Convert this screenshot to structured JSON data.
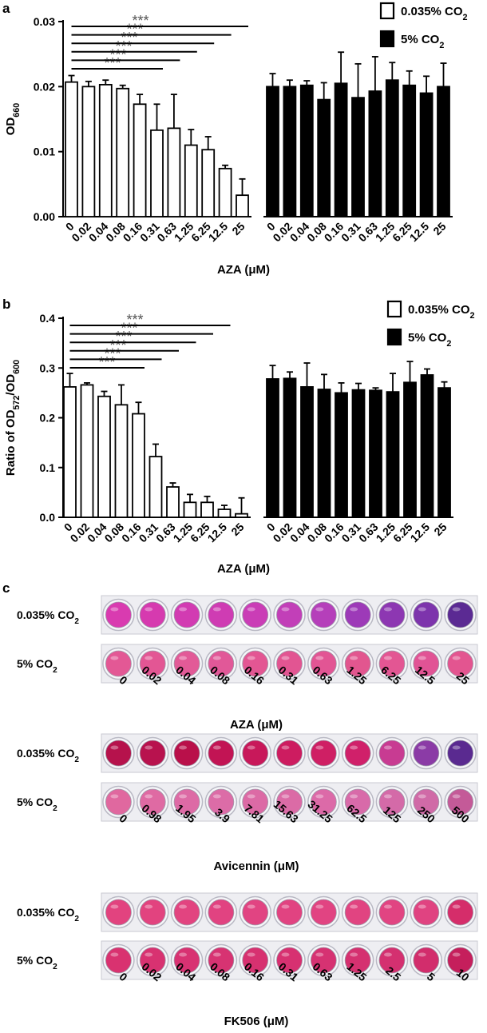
{
  "panel_a": {
    "panel_label": "a",
    "chart_data": {
      "type": "bar",
      "ylabel": "OD660",
      "ylabel_main": "OD",
      "ylabel_sub": "660",
      "xlabel": "AZA (μM)",
      "ylim": [
        0,
        0.03
      ],
      "yticks": [
        "0.00",
        "0.01",
        "0.02",
        "0.03"
      ],
      "categories": [
        "0",
        "0.02",
        "0.04",
        "0.08",
        "0.16",
        "0.31",
        "0.63",
        "1.25",
        "6.25",
        "12.5",
        "25"
      ],
      "series": [
        {
          "name": "0.035% CO2",
          "name_main": "0.035% CO",
          "name_sub": "2",
          "color": "#ffffff",
          "values": [
            0.0207,
            0.02,
            0.0203,
            0.0197,
            0.0173,
            0.0133,
            0.0136,
            0.011,
            0.0103,
            0.0074,
            0.0033
          ],
          "errors": [
            0.001,
            0.0008,
            0.0007,
            0.0005,
            0.0015,
            0.004,
            0.0052,
            0.0024,
            0.002,
            0.0005,
            0.0025
          ]
        },
        {
          "name": "5% CO2",
          "name_main": "5% CO",
          "name_sub": "2",
          "color": "#000000",
          "values": [
            0.02,
            0.02,
            0.0202,
            0.018,
            0.0205,
            0.0183,
            0.0193,
            0.021,
            0.0202,
            0.019,
            0.02
          ],
          "errors": [
            0.002,
            0.001,
            0.0007,
            0.0026,
            0.0048,
            0.0052,
            0.0053,
            0.0027,
            0.0022,
            0.0026,
            0.0036
          ]
        }
      ],
      "significance": [
        {
          "label": "***",
          "from": 0,
          "to": 5
        },
        {
          "label": "***",
          "from": 0,
          "to": 6
        },
        {
          "label": "***",
          "from": 0,
          "to": 7
        },
        {
          "label": "***",
          "from": 0,
          "to": 8
        },
        {
          "label": "***",
          "from": 0,
          "to": 9
        },
        {
          "label": "***",
          "from": 0,
          "to": 10
        }
      ]
    }
  },
  "panel_b": {
    "panel_label": "b",
    "chart_data": {
      "type": "bar",
      "ylabel": "Ratio of OD572/OD600",
      "ylabel_main": "Ratio of OD",
      "ylabel_sub1": "572",
      "ylabel_mid": "/OD",
      "ylabel_sub2": "600",
      "xlabel": "AZA (μM)",
      "ylim": [
        0,
        0.4
      ],
      "yticks": [
        "0.0",
        "0.1",
        "0.2",
        "0.3",
        "0.4"
      ],
      "categories": [
        "0",
        "0.02",
        "0.04",
        "0.08",
        "0.16",
        "0.31",
        "0.63",
        "1.25",
        "6.25",
        "12.5",
        "25"
      ],
      "series": [
        {
          "name": "0.035% CO2",
          "name_main": "0.035% CO",
          "name_sub": "2",
          "color": "#ffffff",
          "values": [
            0.262,
            0.266,
            0.243,
            0.226,
            0.208,
            0.122,
            0.061,
            0.03,
            0.03,
            0.016,
            0.007
          ],
          "errors": [
            0.027,
            0.004,
            0.01,
            0.04,
            0.023,
            0.025,
            0.008,
            0.016,
            0.012,
            0.008,
            0.032
          ]
        },
        {
          "name": "5% CO2",
          "name_main": "5% CO",
          "name_sub": "2",
          "color": "#000000",
          "values": [
            0.278,
            0.279,
            0.262,
            0.257,
            0.25,
            0.256,
            0.255,
            0.252,
            0.271,
            0.286,
            0.26
          ],
          "errors": [
            0.027,
            0.013,
            0.048,
            0.03,
            0.02,
            0.013,
            0.005,
            0.037,
            0.042,
            0.012,
            0.012
          ]
        }
      ],
      "significance": [
        {
          "label": "***",
          "from": 0,
          "to": 4
        },
        {
          "label": "***",
          "from": 0,
          "to": 5
        },
        {
          "label": "***",
          "from": 0,
          "to": 6
        },
        {
          "label": "***",
          "from": 0,
          "to": 7
        },
        {
          "label": "***",
          "from": 0,
          "to": 8
        },
        {
          "label": "***",
          "from": 0,
          "to": 9
        }
      ]
    }
  },
  "panel_c": {
    "panel_label": "c",
    "plates": [
      {
        "rows": [
          {
            "label_main": "0.035% CO",
            "label_sub": "2",
            "colors": [
              "#d93bb0",
              "#d63aaf",
              "#d23bb2",
              "#cf3cb3",
              "#ca3db6",
              "#c23fb8",
              "#b53fba",
              "#9d3ab8",
              "#8d37b2",
              "#7d34ac",
              "#5b2a93"
            ]
          },
          {
            "label_main": "5% CO",
            "label_sub": "2",
            "colors": [
              "#e35895",
              "#e35694",
              "#e25a97",
              "#e15898",
              "#e35693",
              "#e25592",
              "#e25594",
              "#e2568f",
              "#e35693",
              "#e15395",
              "#e35590"
            ]
          }
        ],
        "concentrations": [
          "0",
          "0.02",
          "0.04",
          "0.08",
          "0.16",
          "0.31",
          "0.63",
          "1.25",
          "6.25",
          "12.5",
          "25"
        ],
        "xlabel": "AZA (μM)"
      },
      {
        "rows": [
          {
            "label_main": "0.035% CO",
            "label_sub": "2",
            "colors": [
              "#b6124c",
              "#b8124e",
              "#b9104a",
              "#c21454",
              "#c8185a",
              "#cd1c60",
              "#cf1f64",
              "#d0206a",
              "#c83b92",
              "#8b3ba6",
              "#5a2a90"
            ]
          },
          {
            "label_main": "5% CO",
            "label_sub": "2",
            "colors": [
              "#e0689f",
              "#df6aa3",
              "#dd6aa5",
              "#dc6ca7",
              "#dc6aa5",
              "#db6ba6",
              "#dc6aa8",
              "#d86aa9",
              "#d46aa8",
              "#d06aa7",
              "#c45a98"
            ]
          }
        ],
        "concentrations": [
          "0",
          "0.98",
          "1.95",
          "3.9",
          "7.81",
          "15.63",
          "31.25",
          "62.5",
          "125",
          "250",
          "500"
        ],
        "xlabel": "Avicennin (μM)"
      },
      {
        "rows": [
          {
            "label_main": "0.035% CO",
            "label_sub": "2",
            "colors": [
              "#e2437f",
              "#e2437f",
              "#e24480",
              "#e14381",
              "#e14482",
              "#e14381",
              "#e14482",
              "#e14481",
              "#e14482",
              "#e04381",
              "#d52d6a"
            ]
          },
          {
            "label_main": "5% CO",
            "label_sub": "2",
            "colors": [
              "#d93270",
              "#d83271",
              "#d83272",
              "#d73372",
              "#d73170",
              "#d73171",
              "#d63272",
              "#d53170",
              "#d43070",
              "#d22d6c",
              "#c51f5c"
            ]
          }
        ],
        "concentrations": [
          "0",
          "0.02",
          "0.04",
          "0.08",
          "0.16",
          "0.31",
          "0.63",
          "1.25",
          "2.5",
          "5",
          "10"
        ],
        "xlabel": "FK506 (μM)"
      }
    ]
  }
}
